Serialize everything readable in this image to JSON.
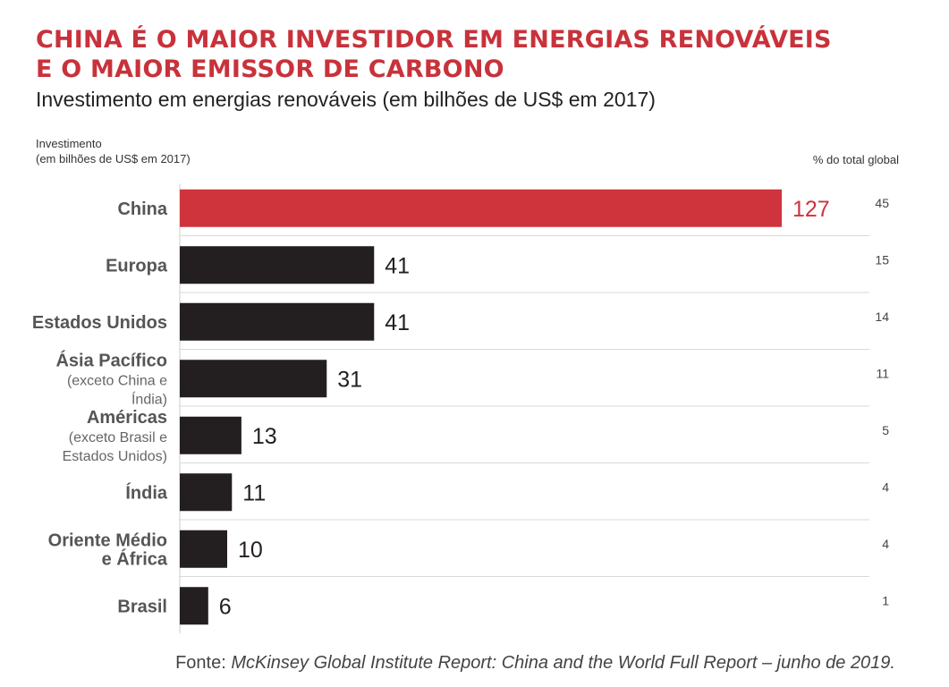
{
  "header": {
    "title_line1": "CHINA É O MAIOR INVESTIDOR EM ENERGIAS RENOVÁVEIS",
    "title_line2": "E O MAIOR EMISSOR DE CARBONO",
    "subtitle": "Investimento em energias renováveis (em bilhões de US$ em 2017)"
  },
  "chart_data": {
    "type": "bar",
    "orientation": "horizontal",
    "axis_caption_line1": "Investimento",
    "axis_caption_line2": "(em bilhões de US$ em 2017)",
    "secondary_column_label": "% do total global",
    "categories": [
      {
        "name": "China",
        "note": ""
      },
      {
        "name": "Europa",
        "note": ""
      },
      {
        "name": "Estados Unidos",
        "note": ""
      },
      {
        "name": "Ásia Pacífico",
        "note": "(exceto China e Índia)"
      },
      {
        "name": "Américas",
        "note": "(exceto Brasil e Estados Unidos)"
      },
      {
        "name": "Índia",
        "note": ""
      },
      {
        "name": "Oriente Médio e África",
        "note": ""
      },
      {
        "name": "Brasil",
        "note": ""
      }
    ],
    "values": [
      127,
      41,
      41,
      31,
      13,
      11,
      10,
      6
    ],
    "pct_of_global": [
      45,
      15,
      14,
      11,
      5,
      4,
      4,
      1
    ],
    "highlight_index": 0,
    "colors": {
      "highlight": "#cf333c",
      "default": "#231f20",
      "grid": "#d9d9d9",
      "label": "#555555"
    },
    "xlim": [
      0,
      127
    ]
  },
  "footer": {
    "source_prefix": "Fonte: ",
    "source_text": "McKinsey Global Institute Report: China and the World Full Report – junho de 2019."
  }
}
